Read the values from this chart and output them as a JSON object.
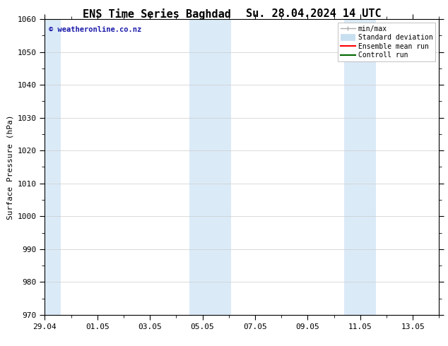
{
  "title": "ENS Time Series Baghdad",
  "title2": "Su. 28.04.2024 14 UTC",
  "ylabel": "Surface Pressure (hPa)",
  "ylim": [
    970,
    1060
  ],
  "yticks": [
    970,
    980,
    990,
    1000,
    1010,
    1020,
    1030,
    1040,
    1050,
    1060
  ],
  "xlim_start": 0,
  "xlim_end": 15,
  "xtick_labels": [
    "29.04",
    "01.05",
    "03.05",
    "05.05",
    "07.05",
    "09.05",
    "11.05",
    "13.05"
  ],
  "xtick_positions": [
    0,
    2,
    4,
    6,
    8,
    10,
    12,
    14
  ],
  "shaded_bands": [
    {
      "x_start": -0.1,
      "x_end": 0.6
    },
    {
      "x_start": 5.5,
      "x_end": 7.1
    },
    {
      "x_start": 11.4,
      "x_end": 12.6
    }
  ],
  "shaded_color": "#dbeaf7",
  "background_color": "#ffffff",
  "watermark_text": "© weatheronline.co.nz",
  "watermark_color": "#1a1aaa",
  "legend_items": [
    {
      "label": "min/max",
      "color": "#aaaaaa",
      "lw": 1.0
    },
    {
      "label": "Standard deviation",
      "color": "#c8dff0",
      "lw": 7
    },
    {
      "label": "Ensemble mean run",
      "color": "#ff0000",
      "lw": 1.5
    },
    {
      "label": "Controll run",
      "color": "#006600",
      "lw": 1.5
    }
  ],
  "grid_color": "#cccccc",
  "title_fontsize": 11,
  "axis_fontsize": 8,
  "tick_fontsize": 8,
  "watermark_fontsize": 7.5
}
